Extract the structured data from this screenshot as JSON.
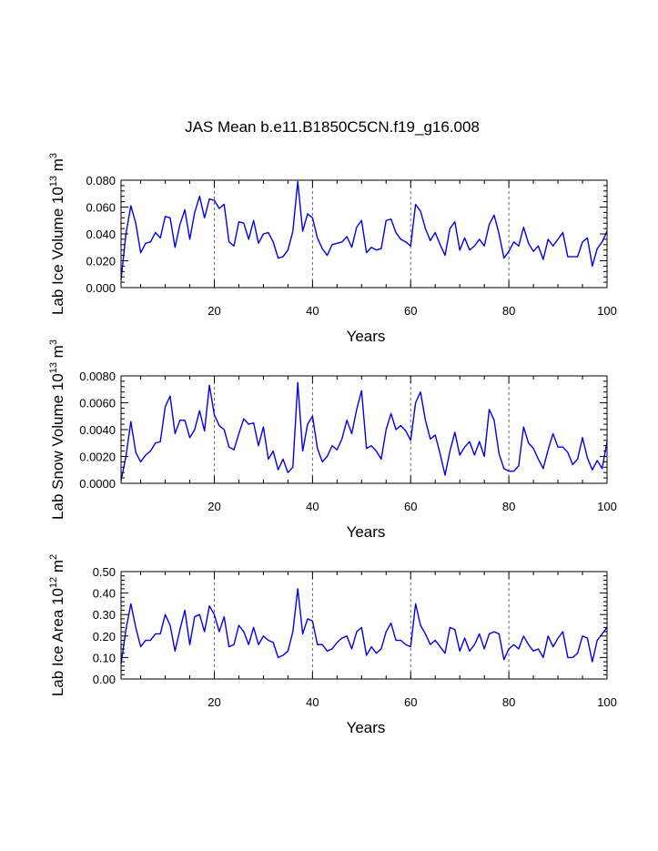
{
  "title": "JAS Mean b.e11.B1850C5CN.f19_g16.008",
  "chart_data": [
    {
      "type": "line",
      "title": "JAS Mean b.e11.B1850C5CN.f19_g16.008",
      "xlabel": "Years",
      "ylabel_parts": {
        "base": "Lab Ice Volume 10",
        "exp1": "13",
        "unit": " m",
        "exp2": "3"
      },
      "ylabel": "Lab Ice Volume 10^13 m^3",
      "xlim": [
        1,
        100
      ],
      "ylim": [
        0.0,
        0.08
      ],
      "xticks": [
        20,
        40,
        60,
        80,
        100
      ],
      "yticks": [
        0.0,
        0.02,
        0.04,
        0.06,
        0.08
      ],
      "ytick_labels": [
        "0.000",
        "0.020",
        "0.040",
        "0.060",
        "0.080"
      ],
      "reference_lines_x": [
        20,
        40,
        60,
        80
      ],
      "series": [
        {
          "name": "Lab Ice Volume",
          "color": "#0000ee",
          "x_start": 1,
          "values": [
            0.006,
            0.04,
            0.061,
            0.048,
            0.026,
            0.033,
            0.034,
            0.041,
            0.037,
            0.053,
            0.052,
            0.03,
            0.047,
            0.058,
            0.036,
            0.056,
            0.068,
            0.052,
            0.066,
            0.065,
            0.059,
            0.062,
            0.034,
            0.031,
            0.049,
            0.048,
            0.036,
            0.05,
            0.033,
            0.04,
            0.041,
            0.034,
            0.022,
            0.023,
            0.028,
            0.042,
            0.079,
            0.042,
            0.055,
            0.052,
            0.037,
            0.029,
            0.024,
            0.032,
            0.033,
            0.034,
            0.038,
            0.03,
            0.045,
            0.05,
            0.026,
            0.03,
            0.028,
            0.029,
            0.05,
            0.051,
            0.041,
            0.036,
            0.034,
            0.031,
            0.062,
            0.057,
            0.044,
            0.035,
            0.041,
            0.032,
            0.024,
            0.044,
            0.049,
            0.028,
            0.037,
            0.028,
            0.031,
            0.036,
            0.031,
            0.047,
            0.054,
            0.04,
            0.022,
            0.027,
            0.034,
            0.031,
            0.045,
            0.033,
            0.027,
            0.031,
            0.021,
            0.036,
            0.031,
            0.036,
            0.041,
            0.023,
            0.023,
            0.023,
            0.034,
            0.037,
            0.016,
            0.029,
            0.034,
            0.042
          ]
        }
      ]
    },
    {
      "type": "line",
      "xlabel": "Years",
      "ylabel_parts": {
        "base": "Lab Snow Volume 10",
        "exp1": "13",
        "unit": " m",
        "exp2": "3"
      },
      "ylabel": "Lab Snow Volume 10^13 m^3",
      "xlim": [
        1,
        100
      ],
      "ylim": [
        0.0,
        0.008
      ],
      "xticks": [
        20,
        40,
        60,
        80,
        100
      ],
      "yticks": [
        0.0,
        0.002,
        0.004,
        0.006,
        0.008
      ],
      "ytick_labels": [
        "0.0000",
        "0.0020",
        "0.0040",
        "0.0060",
        "0.0080"
      ],
      "reference_lines_x": [
        20,
        40,
        60,
        80
      ],
      "series": [
        {
          "name": "Lab Snow Volume",
          "color": "#0000ee",
          "x_start": 1,
          "values": [
            0.0002,
            0.002,
            0.0046,
            0.0023,
            0.0016,
            0.0021,
            0.0024,
            0.003,
            0.0031,
            0.0057,
            0.0065,
            0.0037,
            0.0047,
            0.0047,
            0.0034,
            0.004,
            0.0054,
            0.0039,
            0.0073,
            0.0051,
            0.0043,
            0.004,
            0.0027,
            0.0025,
            0.0037,
            0.0048,
            0.0044,
            0.0045,
            0.0028,
            0.0042,
            0.0018,
            0.0024,
            0.001,
            0.0018,
            0.0008,
            0.0012,
            0.0075,
            0.0024,
            0.0044,
            0.005,
            0.0026,
            0.0016,
            0.002,
            0.0028,
            0.0025,
            0.0033,
            0.0047,
            0.0037,
            0.0055,
            0.0069,
            0.0026,
            0.0028,
            0.0024,
            0.0018,
            0.004,
            0.0052,
            0.004,
            0.0043,
            0.0039,
            0.0032,
            0.006,
            0.0068,
            0.0047,
            0.0033,
            0.0036,
            0.0022,
            0.0006,
            0.0024,
            0.0038,
            0.0021,
            0.0027,
            0.0031,
            0.0021,
            0.0031,
            0.002,
            0.0055,
            0.0047,
            0.0022,
            0.0011,
            0.0009,
            0.0009,
            0.0013,
            0.0042,
            0.003,
            0.0026,
            0.0018,
            0.0011,
            0.0025,
            0.0037,
            0.0027,
            0.0027,
            0.0023,
            0.0014,
            0.0018,
            0.0034,
            0.0019,
            0.001,
            0.0017,
            0.0011,
            0.0031
          ]
        }
      ]
    },
    {
      "type": "line",
      "xlabel": "Years",
      "ylabel_parts": {
        "base": "Lab Ice Area 10",
        "exp1": "12",
        "unit": " m",
        "exp2": "2"
      },
      "ylabel": "Lab Ice Area 10^12 m^2",
      "xlim": [
        1,
        100
      ],
      "ylim": [
        0.0,
        0.5
      ],
      "xticks": [
        20,
        40,
        60,
        80,
        100
      ],
      "yticks": [
        0.0,
        0.1,
        0.2,
        0.3,
        0.4,
        0.5
      ],
      "ytick_labels": [
        "0.00",
        "0.10",
        "0.20",
        "0.30",
        "0.40",
        "0.50"
      ],
      "reference_lines_x": [
        20,
        40,
        60,
        80
      ],
      "series": [
        {
          "name": "Lab Ice Area",
          "color": "#0000ee",
          "x_start": 1,
          "values": [
            0.07,
            0.23,
            0.35,
            0.24,
            0.15,
            0.18,
            0.18,
            0.21,
            0.21,
            0.3,
            0.25,
            0.13,
            0.23,
            0.32,
            0.16,
            0.29,
            0.3,
            0.22,
            0.34,
            0.3,
            0.22,
            0.29,
            0.15,
            0.16,
            0.25,
            0.22,
            0.16,
            0.24,
            0.16,
            0.2,
            0.18,
            0.17,
            0.1,
            0.11,
            0.13,
            0.22,
            0.42,
            0.21,
            0.28,
            0.27,
            0.16,
            0.16,
            0.13,
            0.14,
            0.17,
            0.19,
            0.2,
            0.14,
            0.22,
            0.24,
            0.11,
            0.15,
            0.12,
            0.14,
            0.22,
            0.26,
            0.18,
            0.18,
            0.16,
            0.15,
            0.35,
            0.25,
            0.21,
            0.16,
            0.18,
            0.15,
            0.12,
            0.24,
            0.23,
            0.13,
            0.19,
            0.13,
            0.16,
            0.21,
            0.14,
            0.21,
            0.22,
            0.21,
            0.09,
            0.14,
            0.16,
            0.14,
            0.2,
            0.16,
            0.13,
            0.14,
            0.1,
            0.2,
            0.15,
            0.19,
            0.22,
            0.1,
            0.1,
            0.12,
            0.2,
            0.19,
            0.08,
            0.18,
            0.21,
            0.24
          ]
        }
      ]
    }
  ]
}
